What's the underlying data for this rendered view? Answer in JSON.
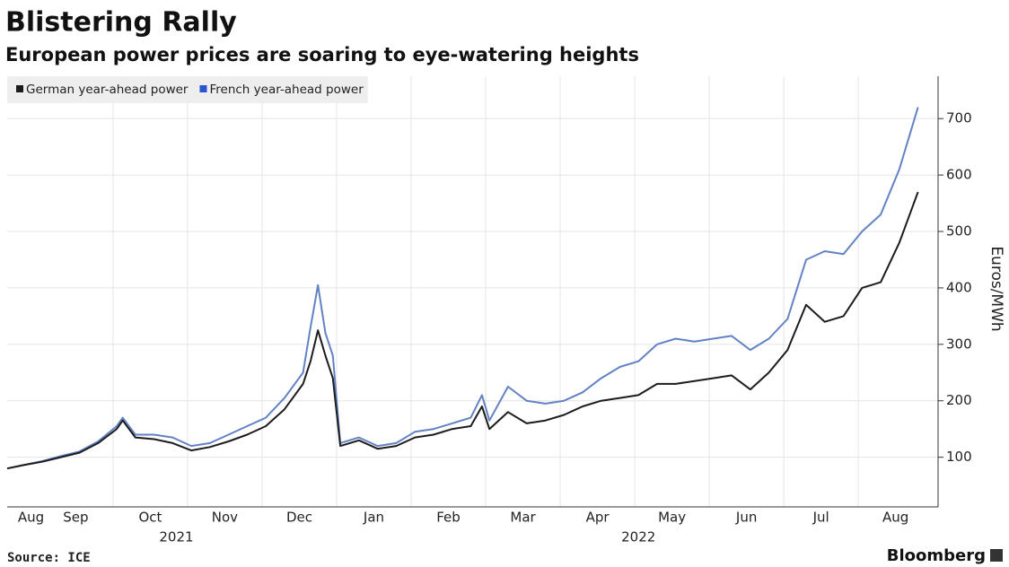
{
  "chart_data": {
    "type": "line",
    "title": "Blistering Rally",
    "subtitle": "European power prices are soaring to eye-watering heights",
    "y_label": "Euros/MWh",
    "source": "Source: ICE",
    "brand": "Bloomberg",
    "x": [
      -0.47,
      -0.25,
      0,
      0.25,
      0.5,
      0.75,
      1.0,
      1.08,
      1.25,
      1.5,
      1.75,
      2.0,
      2.25,
      2.5,
      2.75,
      3.0,
      3.25,
      3.5,
      3.6,
      3.7,
      3.8,
      3.9,
      4.0,
      4.25,
      4.5,
      4.75,
      5.0,
      5.25,
      5.5,
      5.75,
      5.9,
      6.0,
      6.25,
      6.5,
      6.75,
      7.0,
      7.25,
      7.5,
      7.75,
      8.0,
      8.25,
      8.5,
      8.75,
      9.0,
      9.25,
      9.5,
      9.75,
      10.0,
      10.25,
      10.5,
      10.75,
      11.0,
      11.25,
      11.5,
      11.75
    ],
    "series": [
      {
        "name": "German year-ahead power",
        "color": "#1c1c1c",
        "values": [
          80,
          86,
          92,
          100,
          108,
          125,
          150,
          165,
          135,
          132,
          125,
          112,
          118,
          128,
          140,
          155,
          185,
          230,
          270,
          325,
          280,
          240,
          120,
          130,
          115,
          120,
          135,
          140,
          150,
          155,
          190,
          150,
          180,
          160,
          165,
          175,
          190,
          200,
          205,
          210,
          230,
          230,
          235,
          240,
          245,
          220,
          250,
          290,
          370,
          340,
          350,
          400,
          410,
          480,
          570
        ]
      },
      {
        "name": "French year-ahead power",
        "color": "#6282c4",
        "legend_color": "#2a55d0",
        "values": [
          80,
          86,
          93,
          102,
          110,
          128,
          155,
          170,
          140,
          140,
          135,
          120,
          125,
          140,
          155,
          170,
          205,
          250,
          330,
          405,
          320,
          280,
          125,
          135,
          120,
          125,
          145,
          150,
          160,
          170,
          210,
          165,
          225,
          200,
          195,
          200,
          215,
          240,
          260,
          270,
          300,
          310,
          305,
          310,
          315,
          290,
          310,
          345,
          450,
          465,
          460,
          500,
          530,
          610,
          720
        ]
      }
    ],
    "xlim": [
      -0.47,
      12.02
    ],
    "xticks": [
      {
        "value": -0.15,
        "label": "Aug"
      },
      {
        "value": 0.45,
        "label": "Sep"
      },
      {
        "value": 1.45,
        "label": "Oct"
      },
      {
        "value": 2.45,
        "label": "Nov"
      },
      {
        "value": 3.45,
        "label": "Dec"
      },
      {
        "value": 4.45,
        "label": "Jan"
      },
      {
        "value": 5.45,
        "label": "Feb"
      },
      {
        "value": 6.45,
        "label": "Mar"
      },
      {
        "value": 7.45,
        "label": "Apr"
      },
      {
        "value": 8.45,
        "label": "May"
      },
      {
        "value": 9.45,
        "label": "Jun"
      },
      {
        "value": 10.45,
        "label": "Jul"
      },
      {
        "value": 11.45,
        "label": "Aug"
      }
    ],
    "year_labels": [
      {
        "value": 1.8,
        "label": "2021"
      },
      {
        "value": 8.0,
        "label": "2022"
      }
    ],
    "ylim": [
      12,
      775
    ],
    "yticks": [
      100,
      200,
      300,
      400,
      500,
      600,
      700
    ],
    "grid": true,
    "legend": "top-left"
  }
}
